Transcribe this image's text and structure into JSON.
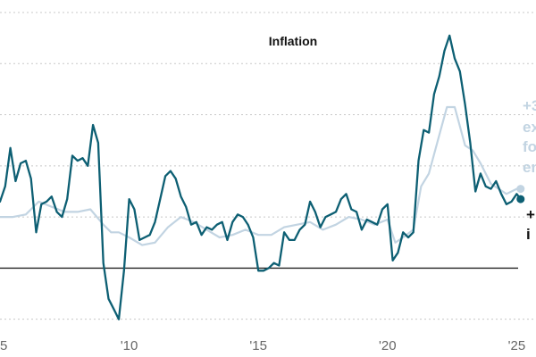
{
  "chart_data": {
    "type": "line",
    "title": "Inflation",
    "xlabel": "",
    "ylabel": "",
    "xlim": [
      2005.0,
      2025.4
    ],
    "ylim": [
      -2.5,
      10.0
    ],
    "grid": true,
    "x_ticks": [
      2005,
      2010,
      2015,
      2020,
      2025
    ],
    "x_tick_labels": [
      "5",
      "'10",
      "'15",
      "'20",
      "'25"
    ],
    "y_ticks": [
      -2,
      0,
      2,
      4,
      6,
      8,
      10
    ],
    "zero_line": 0,
    "annotations": [
      {
        "series": "headline",
        "lines": [
          "+3",
          "ex",
          "fo",
          "en"
        ],
        "color": "#c2d4e2"
      },
      {
        "series": "core",
        "lines": [
          "+",
          "i"
        ],
        "color": "#111111"
      }
    ],
    "series": [
      {
        "id": "headline",
        "color": "#0d5f73",
        "x": [
          2005.0,
          2005.2,
          2005.4,
          2005.6,
          2005.8,
          2006.0,
          2006.2,
          2006.4,
          2006.6,
          2006.8,
          2007.0,
          2007.2,
          2007.4,
          2007.6,
          2007.8,
          2008.0,
          2008.2,
          2008.4,
          2008.6,
          2008.8,
          2009.0,
          2009.2,
          2009.4,
          2009.6,
          2009.8,
          2010.0,
          2010.2,
          2010.4,
          2010.6,
          2010.8,
          2011.0,
          2011.2,
          2011.4,
          2011.6,
          2011.8,
          2012.0,
          2012.2,
          2012.4,
          2012.6,
          2012.8,
          2013.0,
          2013.2,
          2013.4,
          2013.6,
          2013.8,
          2014.0,
          2014.2,
          2014.4,
          2014.6,
          2014.8,
          2015.0,
          2015.2,
          2015.4,
          2015.6,
          2015.8,
          2016.0,
          2016.2,
          2016.4,
          2016.6,
          2016.8,
          2017.0,
          2017.2,
          2017.4,
          2017.6,
          2017.8,
          2018.0,
          2018.2,
          2018.4,
          2018.6,
          2018.8,
          2019.0,
          2019.2,
          2019.4,
          2019.6,
          2019.8,
          2020.0,
          2020.2,
          2020.4,
          2020.6,
          2020.8,
          2021.0,
          2021.2,
          2021.4,
          2021.6,
          2021.8,
          2022.0,
          2022.2,
          2022.4,
          2022.6,
          2022.8,
          2023.0,
          2023.2,
          2023.4,
          2023.6,
          2023.8,
          2024.0,
          2024.2,
          2024.4,
          2024.6,
          2024.8,
          2025.0,
          2025.15
        ],
        "y": [
          2.6,
          3.2,
          4.7,
          3.4,
          4.1,
          4.2,
          3.5,
          1.4,
          2.5,
          2.6,
          2.8,
          2.2,
          2.0,
          2.7,
          4.4,
          4.2,
          4.3,
          4.0,
          5.6,
          4.9,
          0.2,
          -1.2,
          -1.6,
          -2.0,
          -0.1,
          2.7,
          2.3,
          1.1,
          1.2,
          1.3,
          1.8,
          2.7,
          3.6,
          3.8,
          3.5,
          2.8,
          2.4,
          1.7,
          1.8,
          1.3,
          1.6,
          1.5,
          1.7,
          1.8,
          1.1,
          1.8,
          2.1,
          2.0,
          1.7,
          1.2,
          -0.1,
          -0.1,
          0.0,
          0.2,
          0.1,
          1.4,
          1.1,
          1.1,
          1.5,
          1.7,
          2.6,
          2.2,
          1.6,
          2.0,
          2.1,
          2.2,
          2.7,
          2.9,
          2.3,
          2.2,
          1.5,
          1.9,
          1.8,
          1.7,
          2.3,
          2.5,
          0.3,
          0.6,
          1.4,
          1.2,
          1.4,
          4.2,
          5.4,
          5.3,
          6.8,
          7.5,
          8.5,
          9.1,
          8.2,
          7.7,
          6.4,
          4.9,
          3.0,
          3.7,
          3.2,
          3.1,
          3.4,
          2.9,
          2.5,
          2.6,
          2.9,
          2.7
        ]
      },
      {
        "id": "core",
        "color": "#c2d4e2",
        "x": [
          2005.0,
          2005.5,
          2006.0,
          2006.5,
          2007.0,
          2007.5,
          2008.0,
          2008.5,
          2009.0,
          2009.3,
          2009.6,
          2010.0,
          2010.5,
          2011.0,
          2011.5,
          2012.0,
          2012.5,
          2013.0,
          2013.5,
          2014.0,
          2014.5,
          2015.0,
          2015.5,
          2016.0,
          2016.5,
          2017.0,
          2017.5,
          2018.0,
          2018.5,
          2019.0,
          2019.5,
          2020.0,
          2020.3,
          2020.6,
          2021.0,
          2021.3,
          2021.6,
          2022.0,
          2022.3,
          2022.6,
          2023.0,
          2023.3,
          2023.6,
          2024.0,
          2024.3,
          2024.6,
          2025.0,
          2025.15
        ],
        "y": [
          2.0,
          2.0,
          2.1,
          2.6,
          2.4,
          2.2,
          2.2,
          2.3,
          1.7,
          1.4,
          1.4,
          1.2,
          0.9,
          1.0,
          1.6,
          2.0,
          1.8,
          1.5,
          1.2,
          1.3,
          1.5,
          1.3,
          1.3,
          1.6,
          1.7,
          1.8,
          1.5,
          1.7,
          2.0,
          1.9,
          1.7,
          1.9,
          1.0,
          1.2,
          1.5,
          3.2,
          3.7,
          5.2,
          6.3,
          6.3,
          4.8,
          4.6,
          4.1,
          3.3,
          3.1,
          2.9,
          3.1,
          3.1
        ]
      }
    ]
  }
}
